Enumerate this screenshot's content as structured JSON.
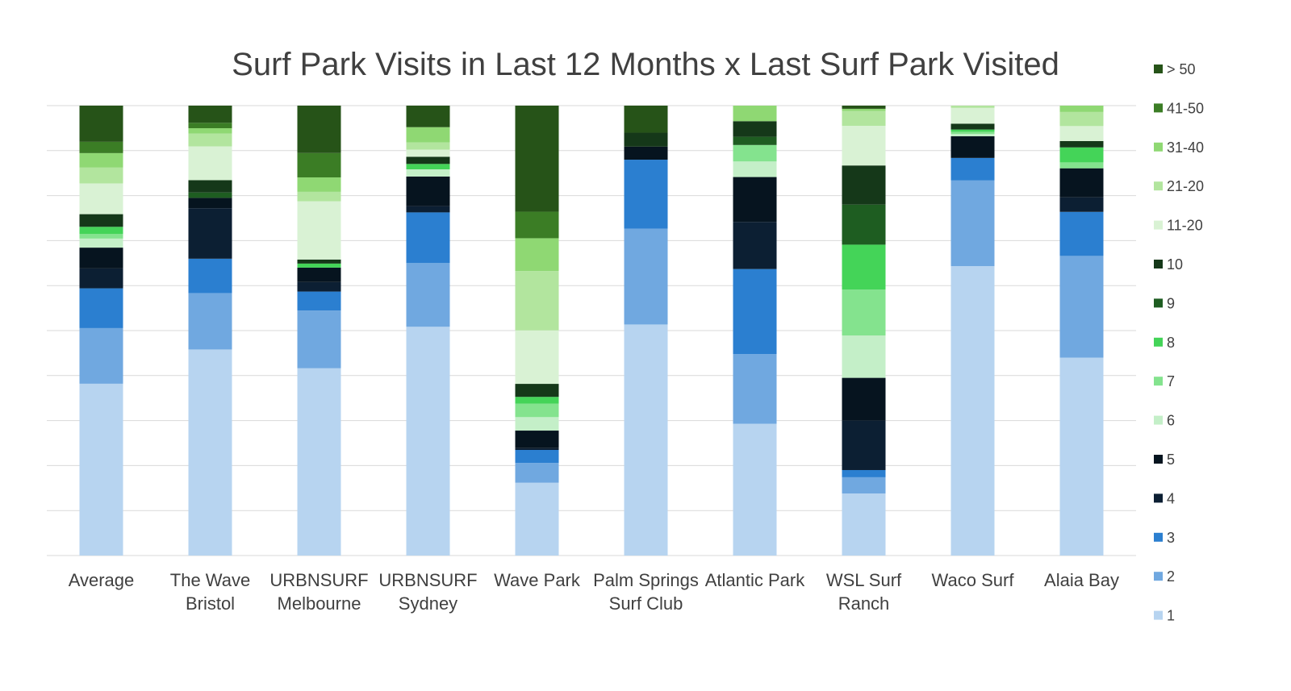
{
  "chart_data": {
    "type": "bar",
    "stacked": true,
    "normalized": true,
    "title": "Surf Park Visits in Last 12 Months x Last Surf Park Visited",
    "xlabel": "",
    "ylabel": "",
    "ylim": [
      0,
      100
    ],
    "grid": true,
    "legend": "right",
    "categories": [
      "Average",
      "The Wave Bristol",
      "URBNSURF Melbourne",
      "URBNSURF Sydney",
      "Wave Park",
      "Palm Springs Surf Club",
      "Atlantic Park",
      "WSL Surf Ranch",
      "Waco Surf",
      "Alaia Bay"
    ],
    "series": [
      {
        "name": "1",
        "color": "#b7d4f0",
        "values": [
          38.0,
          42.0,
          41.5,
          51.0,
          16.2,
          53.0,
          28.8,
          13.8,
          64.2,
          43.6
        ]
      },
      {
        "name": "2",
        "color": "#70a8e0",
        "values": [
          12.3,
          11.5,
          12.8,
          14.2,
          4.4,
          22.0,
          15.2,
          3.6,
          19.0,
          22.4
        ]
      },
      {
        "name": "3",
        "color": "#2b7fd0",
        "values": [
          8.8,
          7.0,
          4.2,
          11.3,
          2.9,
          15.8,
          18.6,
          1.6,
          5.0,
          9.7
        ]
      },
      {
        "name": "4",
        "color": "#0c1f33",
        "values": [
          4.4,
          10.3,
          2.1,
          1.4,
          0.4,
          0.0,
          10.3,
          11.0,
          0.0,
          3.2
        ]
      },
      {
        "name": "5",
        "color": "#06141f",
        "values": [
          4.6,
          2.1,
          3.2,
          6.6,
          3.9,
          3.0,
          9.8,
          9.5,
          4.8,
          6.4
        ]
      },
      {
        "name": "6",
        "color": "#c4efc8",
        "values": [
          2.0,
          0.0,
          0.0,
          1.6,
          3.0,
          0.0,
          3.4,
          9.4,
          0.5,
          0.0
        ]
      },
      {
        "name": "7",
        "color": "#84e38e",
        "values": [
          1.0,
          0.0,
          0.0,
          0.0,
          3.0,
          0.0,
          3.6,
          10.2,
          0.5,
          1.3
        ]
      },
      {
        "name": "8",
        "color": "#44d458",
        "values": [
          1.6,
          0.0,
          0.9,
          1.2,
          1.5,
          0.0,
          0.0,
          10.0,
          0.5,
          3.3
        ]
      },
      {
        "name": "9",
        "color": "#1e5d21",
        "values": [
          0.0,
          1.1,
          0.0,
          0.0,
          0.0,
          0.0,
          1.8,
          8.9,
          0.0,
          0.0
        ]
      },
      {
        "name": "10",
        "color": "#153819",
        "values": [
          2.8,
          2.5,
          0.9,
          1.6,
          2.9,
          3.2,
          3.4,
          8.7,
          1.3,
          1.4
        ]
      },
      {
        "name": "11-20",
        "color": "#d9f2d4",
        "values": [
          6.8,
          6.9,
          12.9,
          1.6,
          11.9,
          0.0,
          0.0,
          8.8,
          3.5,
          3.3
        ]
      },
      {
        "name": "21-20",
        "color": "#b2e59e",
        "values": [
          3.5,
          2.6,
          2.1,
          1.6,
          13.2,
          0.0,
          0.0,
          3.3,
          0.5,
          3.1
        ]
      },
      {
        "name": "31-40",
        "color": "#8fd873",
        "values": [
          3.2,
          1.1,
          3.2,
          3.4,
          7.3,
          0.0,
          3.4,
          0.5,
          0.0,
          1.4
        ]
      },
      {
        "name": "41-50",
        "color": "#3b7d25",
        "values": [
          2.5,
          1.1,
          5.4,
          0.0,
          5.9,
          0.0,
          0.0,
          0.0,
          0.0,
          0.0
        ]
      },
      {
        "name": "> 50",
        "color": "#265318",
        "values": [
          8.0,
          3.5,
          10.5,
          4.8,
          23.6,
          6.2,
          0.0,
          0.7,
          0.0,
          0.0
        ]
      }
    ]
  }
}
